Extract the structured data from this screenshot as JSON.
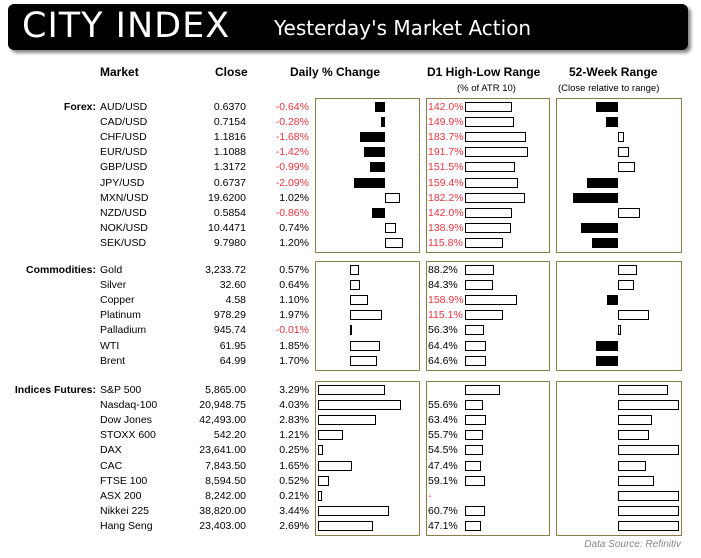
{
  "header": {
    "logo": "CITY INDEX",
    "title": "Yesterday's Market Action"
  },
  "columns": {
    "market": "Market",
    "close": "Close",
    "daily": "Daily % Change",
    "range": "D1 High-Low Range",
    "range_sub": "(% of ATR 10)",
    "week52": "52-Week Range",
    "week52_sub": "(Close relative to range)"
  },
  "groups": [
    {
      "label": "Forex:",
      "rows": [
        {
          "name": "AUD/USD",
          "close": "0.6370",
          "chg": "-0.64%",
          "chg_val": -0.64,
          "range": "142.0%",
          "range_val": 142.0,
          "range_red": true,
          "w52": -0.35
        },
        {
          "name": "CAD/USD",
          "close": "0.7154",
          "chg": "-0.28%",
          "chg_val": -0.28,
          "range": "149.9%",
          "range_val": 149.9,
          "range_red": true,
          "w52": -0.2
        },
        {
          "name": "CHF/USD",
          "close": "1.1816",
          "chg": "-1.68%",
          "chg_val": -1.68,
          "range": "183.7%",
          "range_val": 183.7,
          "range_red": true,
          "w52": 0.1
        },
        {
          "name": "EUR/USD",
          "close": "1.1088",
          "chg": "-1.42%",
          "chg_val": -1.42,
          "range": "191.7%",
          "range_val": 191.7,
          "range_red": true,
          "w52": 0.18
        },
        {
          "name": "GBP/USD",
          "close": "1.3172",
          "chg": "-0.99%",
          "chg_val": -0.99,
          "range": "151.5%",
          "range_val": 151.5,
          "range_red": true,
          "w52": 0.27
        },
        {
          "name": "JPY/USD",
          "close": "0.6737",
          "chg": "-2.09%",
          "chg_val": -2.09,
          "range": "159.4%",
          "range_val": 159.4,
          "range_red": true,
          "w52": -0.5
        },
        {
          "name": "MXN/USD",
          "close": "19.6200",
          "chg": "1.02%",
          "chg_val": 1.02,
          "range": "182.2%",
          "range_val": 182.2,
          "range_red": true,
          "w52": -0.73
        },
        {
          "name": "NZD/USD",
          "close": "0.5854",
          "chg": "-0.86%",
          "chg_val": -0.86,
          "range": "142.0%",
          "range_val": 142.0,
          "range_red": true,
          "w52": 0.35
        },
        {
          "name": "NOK/USD",
          "close": "10.4471",
          "chg": "0.74%",
          "chg_val": 0.74,
          "range": "138.9%",
          "range_val": 138.9,
          "range_red": true,
          "w52": -0.6
        },
        {
          "name": "SEK/USD",
          "close": "9.7980",
          "chg": "1.20%",
          "chg_val": 1.2,
          "range": "115.8%",
          "range_val": 115.8,
          "range_red": true,
          "w52": -0.42
        }
      ]
    },
    {
      "label": "Commodities:",
      "rows": [
        {
          "name": "Gold",
          "close": "3,233.72",
          "chg": "0.57%",
          "chg_val": 0.57,
          "range": "88.2%",
          "range_val": 88.2,
          "range_red": false,
          "w52": 0.3
        },
        {
          "name": "Silver",
          "close": "32.60",
          "chg": "0.64%",
          "chg_val": 0.64,
          "range": "84.3%",
          "range_val": 84.3,
          "range_red": false,
          "w52": 0.25
        },
        {
          "name": "Copper",
          "close": "4.58",
          "chg": "1.10%",
          "chg_val": 1.1,
          "range": "158.9%",
          "range_val": 158.9,
          "range_red": true,
          "w52": -0.18
        },
        {
          "name": "Platinum",
          "close": "978.29",
          "chg": "1.97%",
          "chg_val": 1.97,
          "range": "115.1%",
          "range_val": 115.1,
          "range_red": true,
          "w52": 0.5
        },
        {
          "name": "Palladium",
          "close": "945.74",
          "chg": "-0.01%",
          "chg_val": -0.01,
          "range": "56.3%",
          "range_val": 56.3,
          "range_red": false,
          "w52": 0.02
        },
        {
          "name": "WTI",
          "close": "61.95",
          "chg": "1.85%",
          "chg_val": 1.85,
          "range": "64.4%",
          "range_val": 64.4,
          "range_red": false,
          "w52": -0.35
        },
        {
          "name": "Brent",
          "close": "64.99",
          "chg": "1.70%",
          "chg_val": 1.7,
          "range": "64.6%",
          "range_val": 64.6,
          "range_red": false,
          "w52": -0.35
        }
      ]
    },
    {
      "label": "Indices Futures:",
      "rows": [
        {
          "name": "S&P 500",
          "close": "5,865.00",
          "chg": "3.29%",
          "chg_val": 3.29,
          "range": "",
          "range_val": 105.0,
          "range_red": false,
          "w52": 0.8
        },
        {
          "name": "Nasdaq-100",
          "close": "20,948.75",
          "chg": "4.03%",
          "chg_val": 4.03,
          "range": "55.6%",
          "range_val": 55.6,
          "range_red": false,
          "w52": 0.99
        },
        {
          "name": "Dow Jones",
          "close": "42,493.00",
          "chg": "2.83%",
          "chg_val": 2.83,
          "range": "63.4%",
          "range_val": 63.4,
          "range_red": false,
          "w52": 0.55
        },
        {
          "name": "STOXX 600",
          "close": "542.20",
          "chg": "1.21%",
          "chg_val": 1.21,
          "range": "55.7%",
          "range_val": 55.7,
          "range_red": false,
          "w52": 0.5
        },
        {
          "name": "DAX",
          "close": "23,641.00",
          "chg": "0.25%",
          "chg_val": 0.25,
          "range": "54.5%",
          "range_val": 54.5,
          "range_red": false,
          "w52": 0.99
        },
        {
          "name": "CAC",
          "close": "7,843.50",
          "chg": "1.65%",
          "chg_val": 1.65,
          "range": "47.4%",
          "range_val": 47.4,
          "range_red": false,
          "w52": 0.45
        },
        {
          "name": "FTSE 100",
          "close": "8,594.50",
          "chg": "0.52%",
          "chg_val": 0.52,
          "range": "59.1%",
          "range_val": 59.1,
          "range_red": false,
          "w52": 0.58
        },
        {
          "name": "ASX 200",
          "close": "8,242.00",
          "chg": "0.21%",
          "chg_val": 0.21,
          "range": "-",
          "range_val": 0,
          "range_red": true,
          "w52": 0.99
        },
        {
          "name": "Nikkei 225",
          "close": "38,820.00",
          "chg": "3.44%",
          "chg_val": 3.44,
          "range": "60.7%",
          "range_val": 60.7,
          "range_red": false,
          "w52": 0.99
        },
        {
          "name": "Hang Seng",
          "close": "23,403.00",
          "chg": "2.69%",
          "chg_val": 2.69,
          "range": "47.1%",
          "range_val": 47.1,
          "range_red": false,
          "w52": 0.99
        }
      ]
    }
  ],
  "source": "Data Source: Refinitiv"
}
